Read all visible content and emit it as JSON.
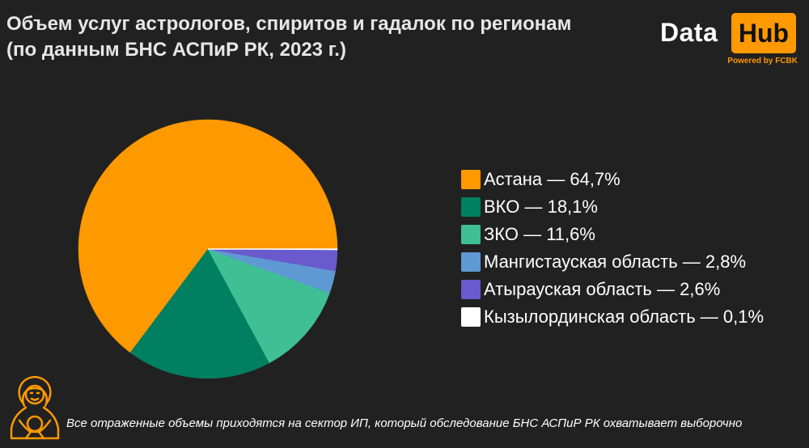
{
  "title": {
    "line1": "Объем услуг астрологов, спиритов и гадалок по регионам",
    "line2": "(по данным БНС АСПиР РК, 2023 г.)"
  },
  "logo": {
    "data_text": "Data",
    "hub_text": "Hub",
    "powered_text": "Powered by FCBK",
    "hub_color": "#ff9900"
  },
  "chart_data": {
    "type": "pie",
    "categories": [
      "Астана",
      "ВКО",
      "ЗКО",
      "Мангистауская область",
      "Атырауская область",
      "Кызылординская область"
    ],
    "values": [
      64.7,
      18.1,
      11.6,
      2.8,
      2.6,
      0.1
    ],
    "colors": [
      "#ff9900",
      "#008060",
      "#40bf95",
      "#5f99d3",
      "#6a5acd",
      "#ffffff"
    ],
    "legend_labels": [
      "Астана — 64,7%",
      "ВКО — 18,1%",
      "ЗКО — 11,6%",
      "Мангистауская область — 2,8%",
      "Атырауская область — 2,6%",
      "Кызылординская область — 0,1%"
    ],
    "legend_position": "right"
  },
  "footnote": {
    "text": "Все отраженные объемы приходятся на сектор ИП, который обследование БНС АСПиР РК охватывает выборочно",
    "icon": "fortune-teller-icon"
  }
}
